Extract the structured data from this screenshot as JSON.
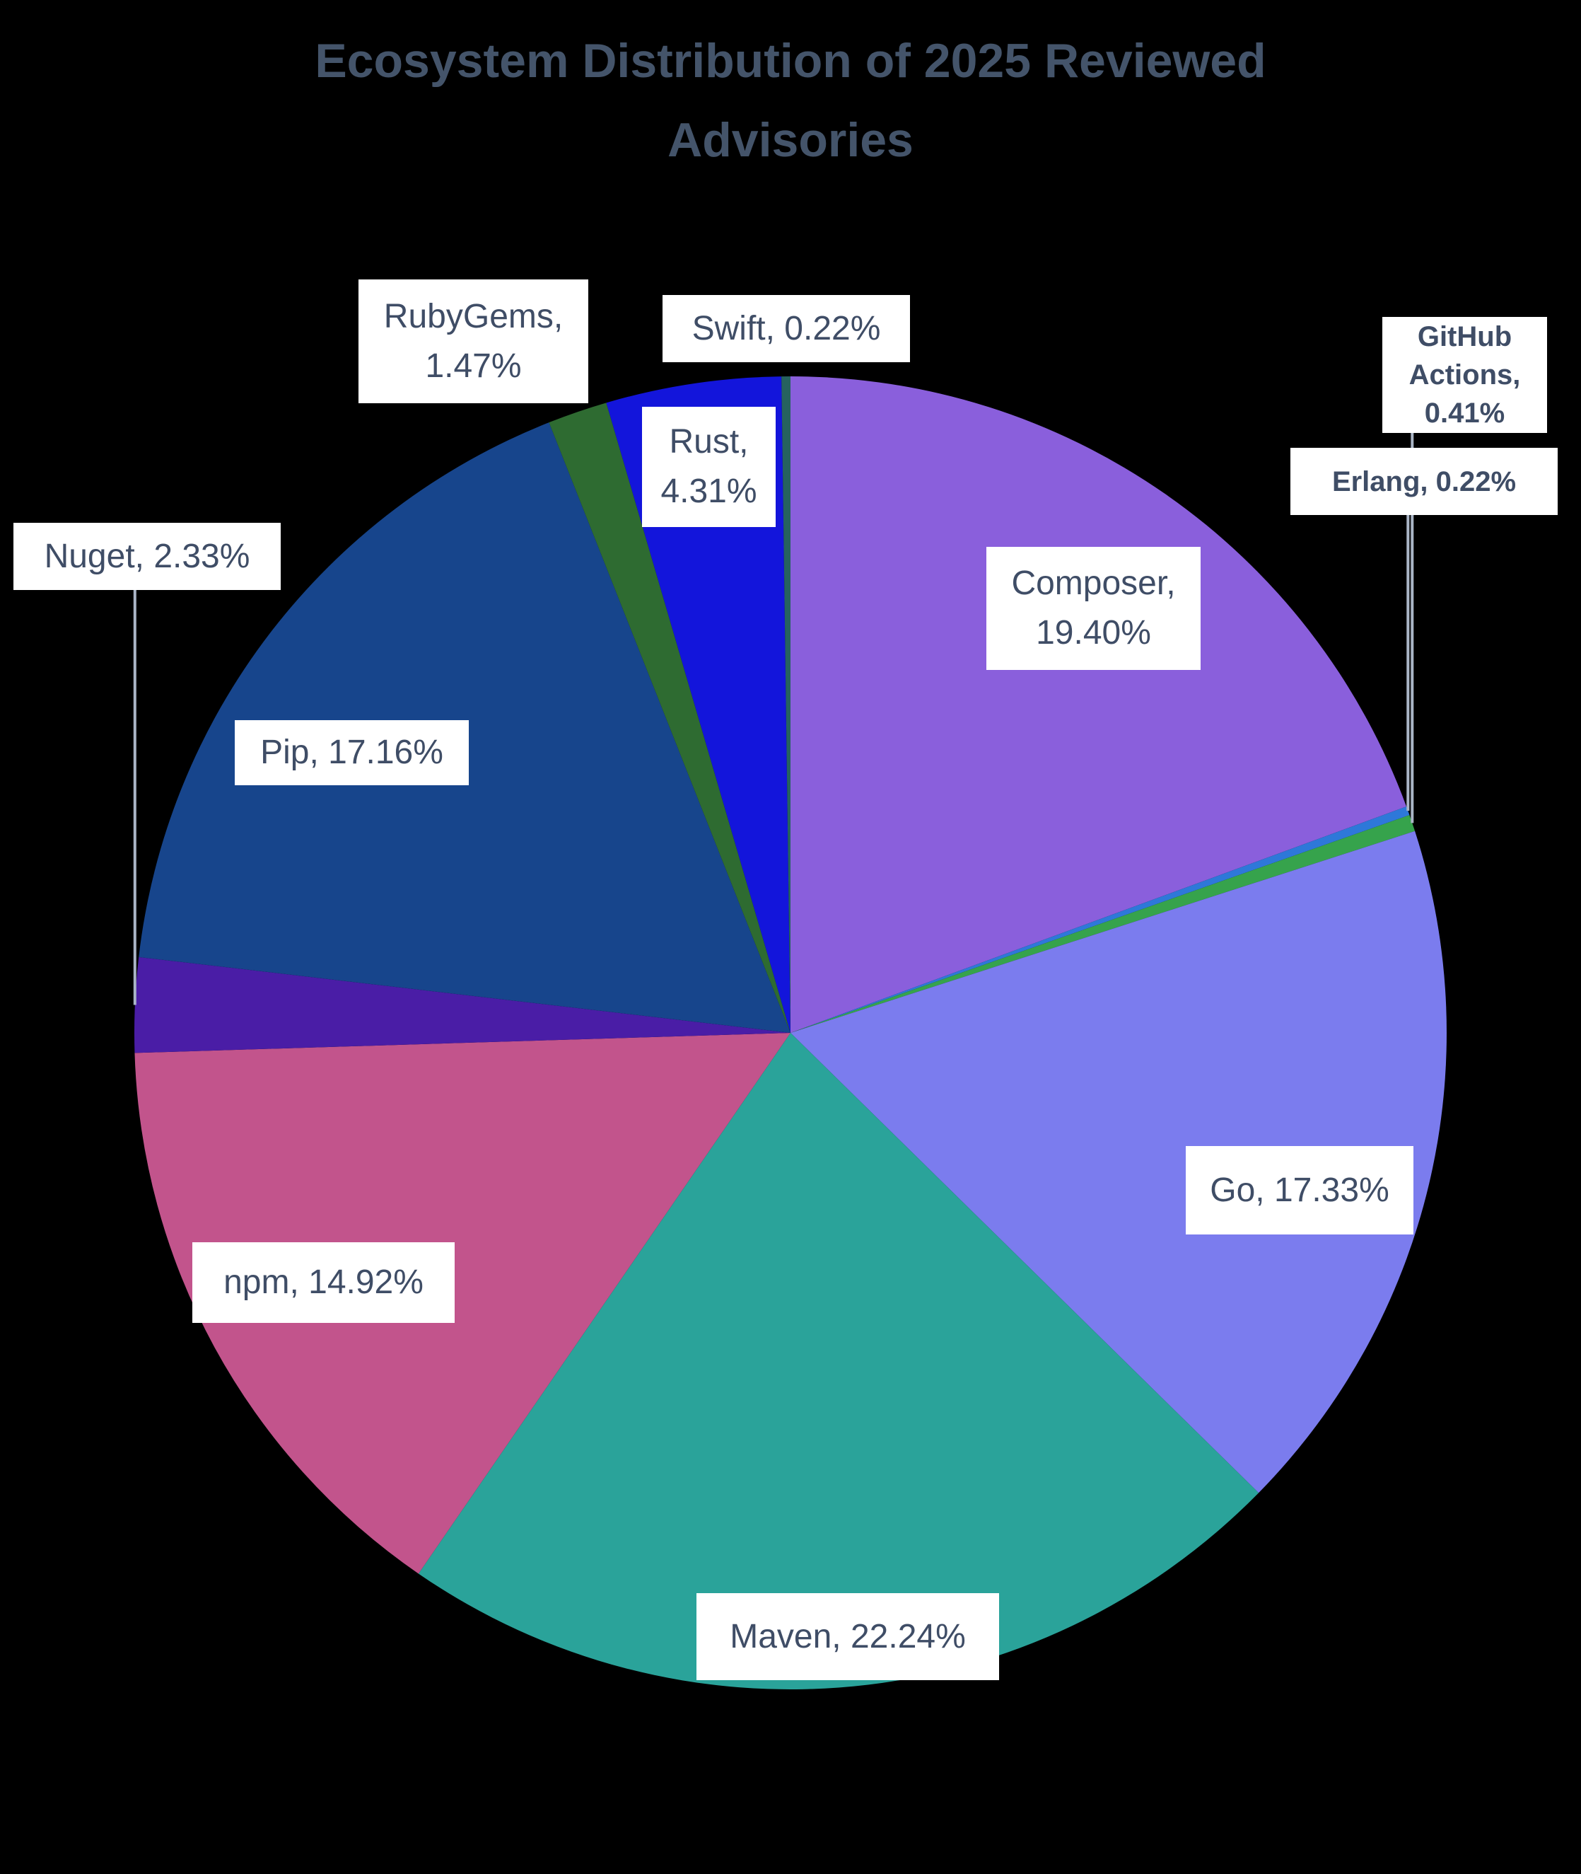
{
  "title": {
    "text": "Ecosystem Distribution of 2025 Reviewed Advisories"
  },
  "colors": {
    "background": "#000000",
    "title_text": "#44546A",
    "label_text": "#3F4D66",
    "label_box": "#FFFFFF",
    "leader_line": "#AAB5C6"
  },
  "chart_data": {
    "type": "pie",
    "title": "Ecosystem Distribution of 2025 Reviewed Advisories",
    "value_format": "percent",
    "rotation": "clockwise-from-12-oclock",
    "order": "alphabetical",
    "legend": false,
    "data_labels": "category-name-and-percentage",
    "slices": [
      {
        "label": "Composer",
        "value": 19.4,
        "color": "#8A5FDC"
      },
      {
        "label": "Erlang",
        "value": 0.22,
        "color": "#2E78D9"
      },
      {
        "label": "GitHub Actions",
        "value": 0.41,
        "color": "#36A34C"
      },
      {
        "label": "Go",
        "value": 17.33,
        "color": "#7B7CEE"
      },
      {
        "label": "Maven",
        "value": 22.24,
        "color": "#2AA39A"
      },
      {
        "label": "npm",
        "value": 14.92,
        "color": "#C2548C"
      },
      {
        "label": "Nuget",
        "value": 2.33,
        "color": "#4A1DA6"
      },
      {
        "label": "Pip",
        "value": 17.16,
        "color": "#17458C"
      },
      {
        "label": "RubyGems",
        "value": 1.47,
        "color": "#2E6B31"
      },
      {
        "label": "Rust",
        "value": 4.31,
        "color": "#1315DB"
      },
      {
        "label": "Swift",
        "value": 0.22,
        "color": "#26625F"
      }
    ]
  },
  "labels": {
    "composer": {
      "text": "Composer,\n19.40%"
    },
    "erlang": {
      "text": "Erlang, 0.22%"
    },
    "github_actions": {
      "text": "GitHub\nActions,\n0.41%"
    },
    "go": {
      "text": "Go, 17.33%"
    },
    "maven": {
      "text": "Maven, 22.24%"
    },
    "npm": {
      "text": "npm, 14.92%"
    },
    "nuget": {
      "text": "Nuget, 2.33%"
    },
    "pip": {
      "text": "Pip, 17.16%"
    },
    "rubygems": {
      "text": "RubyGems,\n1.47%"
    },
    "rust": {
      "text": "Rust,\n4.31%"
    },
    "swift": {
      "text": "Swift, 0.22%"
    }
  }
}
